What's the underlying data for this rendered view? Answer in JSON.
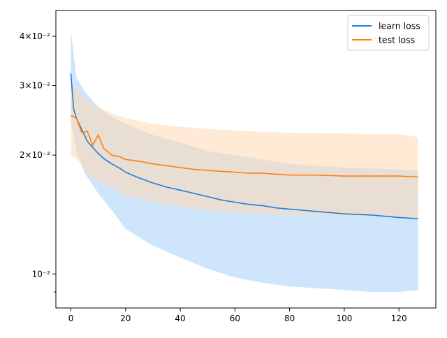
{
  "chart_data": {
    "type": "line",
    "title": "",
    "xlabel": "",
    "ylabel": "",
    "yscale": "log",
    "xlim": [
      -5.5,
      133.5
    ],
    "ylim": [
      0.0082,
      0.0465
    ],
    "grid": false,
    "legend_position": "top-right",
    "x_ticks": [
      0,
      20,
      40,
      60,
      80,
      100,
      120
    ],
    "y_ticks": [
      {
        "value": 0.04,
        "label": "4×10⁻²"
      },
      {
        "value": 0.03,
        "label": "3×10⁻²"
      },
      {
        "value": 0.02,
        "label": "2×10⁻²"
      },
      {
        "value": 0.01,
        "label": "10⁻²"
      }
    ],
    "y_minor_ticks": [
      0.009
    ],
    "series": [
      {
        "name": "learn loss",
        "color": "#1f7fe0",
        "band_color": "#a6cff8",
        "points": [
          [
            0,
            0.0322
          ],
          [
            1,
            0.0262
          ],
          [
            2,
            0.0248
          ],
          [
            4,
            0.0232
          ],
          [
            6,
            0.0217
          ],
          [
            8,
            0.0209
          ],
          [
            10,
            0.0202
          ],
          [
            12,
            0.0196
          ],
          [
            15,
            0.019
          ],
          [
            18,
            0.0185
          ],
          [
            20,
            0.0181
          ],
          [
            25,
            0.0175
          ],
          [
            30,
            0.017
          ],
          [
            35,
            0.0166
          ],
          [
            40,
            0.0163
          ],
          [
            45,
            0.016
          ],
          [
            50,
            0.0157
          ],
          [
            55,
            0.0154
          ],
          [
            60,
            0.0152
          ],
          [
            65,
            0.015
          ],
          [
            70,
            0.0149
          ],
          [
            75,
            0.0147
          ],
          [
            80,
            0.0146
          ],
          [
            90,
            0.0144
          ],
          [
            100,
            0.0142
          ],
          [
            110,
            0.0141
          ],
          [
            120,
            0.0139
          ],
          [
            127,
            0.0138
          ]
        ],
        "upper": [
          [
            0,
            0.0412
          ],
          [
            2,
            0.0315
          ],
          [
            5,
            0.029
          ],
          [
            10,
            0.0265
          ],
          [
            15,
            0.025
          ],
          [
            20,
            0.024
          ],
          [
            30,
            0.0225
          ],
          [
            40,
            0.0215
          ],
          [
            50,
            0.0205
          ],
          [
            60,
            0.02
          ],
          [
            70,
            0.0195
          ],
          [
            80,
            0.019
          ],
          [
            90,
            0.0188
          ],
          [
            100,
            0.0186
          ],
          [
            110,
            0.0185
          ],
          [
            120,
            0.0184
          ],
          [
            127,
            0.0183
          ]
        ],
        "lower": [
          [
            0,
            0.0245
          ],
          [
            2,
            0.0205
          ],
          [
            5,
            0.018
          ],
          [
            10,
            0.016
          ],
          [
            15,
            0.0145
          ],
          [
            20,
            0.013
          ],
          [
            30,
            0.0118
          ],
          [
            40,
            0.011
          ],
          [
            50,
            0.0103
          ],
          [
            60,
            0.0098
          ],
          [
            70,
            0.0095
          ],
          [
            80,
            0.0093
          ],
          [
            90,
            0.0092
          ],
          [
            100,
            0.0091
          ],
          [
            110,
            0.009
          ],
          [
            120,
            0.009
          ],
          [
            127,
            0.0091
          ]
        ]
      },
      {
        "name": "test loss",
        "color": "#ff7f0e",
        "band_color": "#ffd8b5",
        "points": [
          [
            0,
            0.0252
          ],
          [
            2,
            0.0248
          ],
          [
            4,
            0.0228
          ],
          [
            6,
            0.023
          ],
          [
            8,
            0.0212
          ],
          [
            10,
            0.0225
          ],
          [
            12,
            0.0208
          ],
          [
            15,
            0.02
          ],
          [
            18,
            0.0198
          ],
          [
            20,
            0.0195
          ],
          [
            25,
            0.0193
          ],
          [
            30,
            0.019
          ],
          [
            35,
            0.0188
          ],
          [
            40,
            0.0186
          ],
          [
            45,
            0.0184
          ],
          [
            50,
            0.0183
          ],
          [
            55,
            0.0182
          ],
          [
            60,
            0.0181
          ],
          [
            65,
            0.018
          ],
          [
            70,
            0.018
          ],
          [
            75,
            0.0179
          ],
          [
            80,
            0.0178
          ],
          [
            90,
            0.0178
          ],
          [
            100,
            0.0177
          ],
          [
            110,
            0.0177
          ],
          [
            120,
            0.0177
          ],
          [
            127,
            0.0176
          ]
        ],
        "upper": [
          [
            0,
            0.0305
          ],
          [
            3,
            0.029
          ],
          [
            6,
            0.0275
          ],
          [
            10,
            0.0265
          ],
          [
            15,
            0.0255
          ],
          [
            20,
            0.0248
          ],
          [
            30,
            0.024
          ],
          [
            40,
            0.0236
          ],
          [
            50,
            0.0233
          ],
          [
            60,
            0.0231
          ],
          [
            70,
            0.0229
          ],
          [
            80,
            0.0228
          ],
          [
            90,
            0.0227
          ],
          [
            100,
            0.0227
          ],
          [
            110,
            0.0226
          ],
          [
            120,
            0.0226
          ],
          [
            127,
            0.0222
          ]
        ],
        "lower": [
          [
            0,
            0.02
          ],
          [
            3,
            0.0193
          ],
          [
            6,
            0.0178
          ],
          [
            10,
            0.0172
          ],
          [
            15,
            0.0165
          ],
          [
            20,
            0.0158
          ],
          [
            30,
            0.0152
          ],
          [
            40,
            0.0148
          ],
          [
            50,
            0.0145
          ],
          [
            60,
            0.0143
          ],
          [
            70,
            0.0142
          ],
          [
            80,
            0.0141
          ],
          [
            90,
            0.0141
          ],
          [
            100,
            0.014
          ],
          [
            110,
            0.014
          ],
          [
            120,
            0.014
          ],
          [
            127,
            0.0138
          ]
        ]
      }
    ]
  }
}
